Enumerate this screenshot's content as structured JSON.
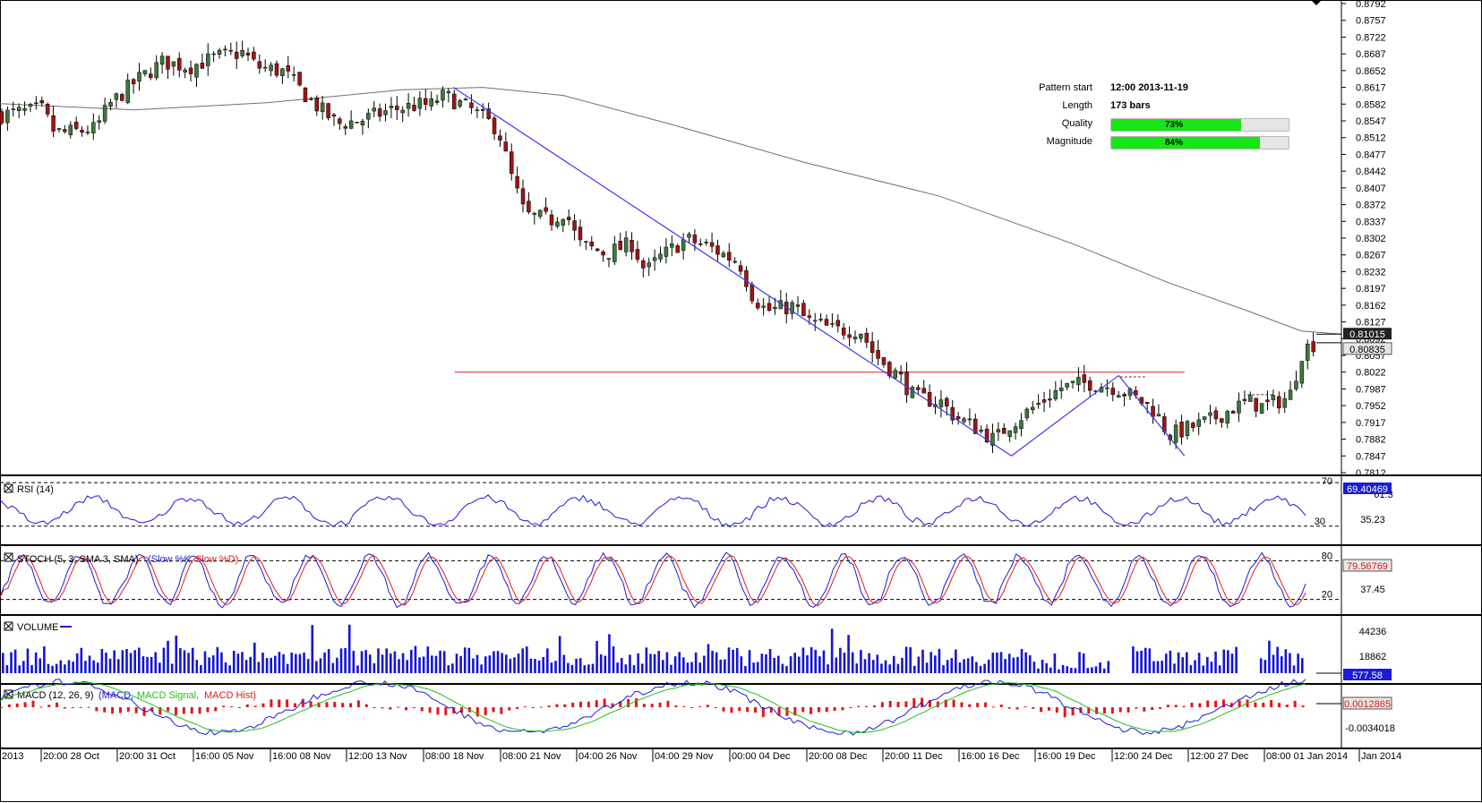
{
  "chart_data": [
    {
      "type": "candlestick",
      "panel": "price",
      "ylim": [
        0.7812,
        0.8792
      ],
      "y_ticks": [
        "0.8792",
        "0.8757",
        "0.8722",
        "0.8687",
        "0.8652",
        "0.8617",
        "0.8582",
        "0.8547",
        "0.8512",
        "0.8477",
        "0.8442",
        "0.8407",
        "0.8372",
        "0.8337",
        "0.8302",
        "0.8267",
        "0.8232",
        "0.8197",
        "0.8162",
        "0.8127",
        "0.8092",
        "0.8057",
        "0.8022",
        "0.7987",
        "0.7952",
        "0.7917",
        "0.7882",
        "0.7847",
        "0.7812"
      ],
      "x_ticks": [
        "2013",
        "20:00 28 Oct",
        "20:00 31 Oct",
        "16:00 05 Nov",
        "16:00 08 Nov",
        "12:00 13 Nov",
        "08:00 18 Nov",
        "08:00 21 Nov",
        "04:00 26 Nov",
        "04:00 29 Nov",
        "00:00 04 Dec",
        "20:00 08 Dec",
        "20:00 11 Dec",
        "16:00 16 Dec",
        "16:00 19 Dec",
        "12:00 24 Dec",
        "12:00 27 Dec",
        "08:00 01 Jan 2014",
        "Jan 2014"
      ],
      "close_path": [
        [
          0,
          0.856
        ],
        [
          0.03,
          0.857
        ],
        [
          0.04,
          0.852
        ],
        [
          0.07,
          0.853
        ],
        [
          0.08,
          0.858
        ],
        [
          0.1,
          0.863
        ],
        [
          0.12,
          0.867
        ],
        [
          0.14,
          0.866
        ],
        [
          0.16,
          0.868
        ],
        [
          0.18,
          0.869
        ],
        [
          0.19,
          0.866
        ],
        [
          0.21,
          0.865
        ],
        [
          0.23,
          0.859
        ],
        [
          0.25,
          0.854
        ],
        [
          0.27,
          0.855
        ],
        [
          0.29,
          0.857
        ],
        [
          0.31,
          0.858
        ],
        [
          0.32,
          0.858
        ],
        [
          0.33,
          0.86
        ],
        [
          0.35,
          0.857
        ],
        [
          0.37,
          0.853
        ],
        [
          0.38,
          0.843
        ],
        [
          0.39,
          0.835
        ],
        [
          0.41,
          0.834
        ],
        [
          0.42,
          0.836
        ],
        [
          0.43,
          0.829
        ],
        [
          0.45,
          0.827
        ],
        [
          0.47,
          0.829
        ],
        [
          0.48,
          0.823
        ],
        [
          0.49,
          0.826
        ],
        [
          0.51,
          0.83
        ],
        [
          0.53,
          0.828
        ],
        [
          0.55,
          0.825
        ],
        [
          0.56,
          0.818
        ],
        [
          0.57,
          0.815
        ],
        [
          0.59,
          0.816
        ],
        [
          0.6,
          0.813
        ],
        [
          0.62,
          0.811
        ],
        [
          0.64,
          0.811
        ],
        [
          0.65,
          0.806
        ],
        [
          0.67,
          0.801
        ],
        [
          0.68,
          0.797
        ],
        [
          0.7,
          0.796
        ],
        [
          0.71,
          0.793
        ],
        [
          0.73,
          0.79
        ],
        [
          0.74,
          0.788
        ],
        [
          0.75,
          0.791
        ],
        [
          0.77,
          0.795
        ],
        [
          0.79,
          0.799
        ],
        [
          0.81,
          0.8
        ],
        [
          0.83,
          0.799
        ],
        [
          0.85,
          0.796
        ],
        [
          0.86,
          0.794
        ],
        [
          0.87,
          0.789
        ],
        [
          0.88,
          0.79
        ],
        [
          0.9,
          0.792
        ],
        [
          0.92,
          0.795
        ],
        [
          0.93,
          0.796
        ],
        [
          0.94,
          0.795
        ],
        [
          0.96,
          0.797
        ],
        [
          0.97,
          0.807
        ],
        [
          0.98,
          0.8084
        ]
      ],
      "moving_average": [
        [
          0,
          0.8583
        ],
        [
          0.1,
          0.857
        ],
        [
          0.2,
          0.8585
        ],
        [
          0.3,
          0.8612
        ],
        [
          0.36,
          0.8617
        ],
        [
          0.42,
          0.86
        ],
        [
          0.5,
          0.854
        ],
        [
          0.6,
          0.846
        ],
        [
          0.7,
          0.839
        ],
        [
          0.8,
          0.829
        ],
        [
          0.87,
          0.821
        ],
        [
          0.93,
          0.815
        ],
        [
          0.97,
          0.8108
        ],
        [
          1.0,
          0.81015
        ]
      ],
      "pattern_lines": [
        [
          [
            0.338,
            0.8617
          ],
          [
            0.754,
            0.7847
          ]
        ],
        [
          [
            0.754,
            0.7847
          ],
          [
            0.834,
            0.8015
          ]
        ],
        [
          [
            0.834,
            0.8015
          ],
          [
            0.883,
            0.7847
          ]
        ]
      ],
      "resistance_level": 0.8022,
      "price_labels": [
        "0.81015",
        "0.80835"
      ],
      "pattern_info": {
        "pattern_start_label": "Pattern start",
        "pattern_start": "12:00 2013-11-19",
        "length_label": "Length",
        "length": "173 bars",
        "quality_label": "Quality",
        "quality": 0.73,
        "quality_text": "73%",
        "magnitude_label": "Magnitude",
        "magnitude": 0.84,
        "magnitude_text": "84%"
      }
    },
    {
      "type": "line",
      "panel": "rsi",
      "title": "RSI (14)",
      "levels": [
        "70",
        "30"
      ],
      "ticks": [
        "61.3",
        "35.23"
      ],
      "value_label": "69.40469"
    },
    {
      "type": "line",
      "panel": "stoch",
      "title": "STOCH (5, 3, SMA 3, SMA)",
      "series": [
        "Slow %K",
        "Slow %D"
      ],
      "levels": [
        "80",
        "20"
      ],
      "ticks": [
        "37.45"
      ],
      "value_label": "79.56769"
    },
    {
      "type": "bar",
      "panel": "volume",
      "title": "VOLUME",
      "ticks": [
        "44236",
        "18862"
      ],
      "value_label": "577.58"
    },
    {
      "type": "line",
      "panel": "macd",
      "title": "MACD (12, 26, 9)",
      "series": [
        "MACD",
        "MACD Signal",
        "MACD Hist"
      ],
      "ticks": [
        "-0.0034018"
      ],
      "value_label": "0.0012865"
    }
  ],
  "colors": {
    "bull": "#3c7a3c",
    "bear": "#a01414",
    "pattern_line": "#3a3af0",
    "resistance": "#e02020",
    "ma": "#707070",
    "rsi": "#1b1bd8",
    "k_line": "#1b1bd8",
    "d_line": "#e01c1c",
    "volume": "#1414d8",
    "macd": "#1b1bd8",
    "signal": "#20c020",
    "hist": "#e01818"
  }
}
